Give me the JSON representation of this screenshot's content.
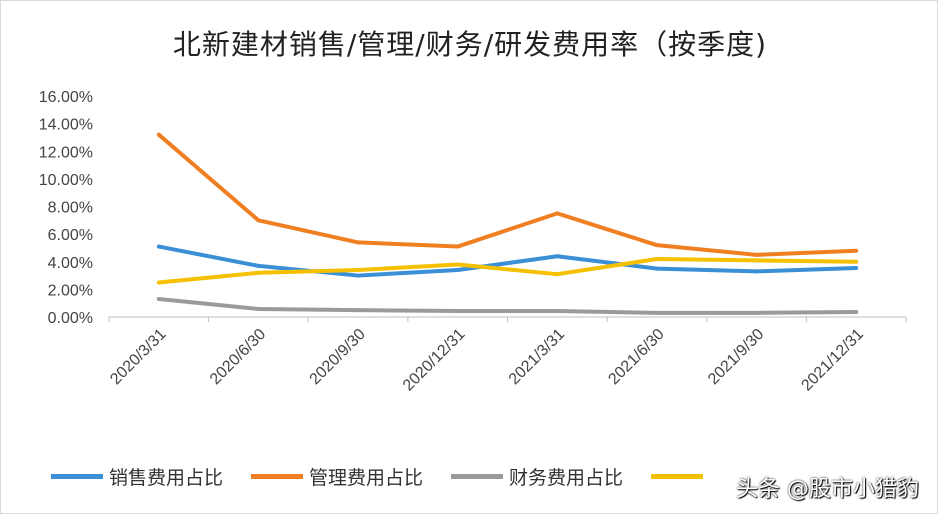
{
  "chart_data": {
    "type": "line",
    "title": "北新建材销售/管理/财务/研发费用率（按季度)",
    "categories": [
      "2020/3/31",
      "2020/6/30",
      "2020/9/30",
      "2020/12/31",
      "2021/3/31",
      "2021/6/30",
      "2021/9/30",
      "2021/12/31"
    ],
    "yticks": [
      "0.00%",
      "2.00%",
      "4.00%",
      "6.00%",
      "8.00%",
      "10.00%",
      "12.00%",
      "14.00%",
      "16.00%"
    ],
    "ylim": [
      0,
      16
    ],
    "yunit": "%",
    "grid": false,
    "legend_position": "bottom",
    "series": [
      {
        "name": "销售费用占比",
        "color": "#3b8fd6",
        "values": [
          5.1,
          3.7,
          3.0,
          3.4,
          4.4,
          3.5,
          3.3,
          3.55
        ]
      },
      {
        "name": "管理费用占比",
        "color": "#f07f22",
        "values": [
          13.2,
          7.0,
          5.4,
          5.1,
          7.5,
          5.2,
          4.5,
          4.8
        ]
      },
      {
        "name": "财务费用占比",
        "color": "#9a9a9a",
        "values": [
          1.3,
          0.58,
          0.5,
          0.43,
          0.43,
          0.3,
          0.3,
          0.36
        ]
      },
      {
        "color": "#f5c000",
        "values": [
          2.5,
          3.2,
          3.4,
          3.8,
          3.1,
          4.2,
          4.1,
          4.0
        ]
      }
    ]
  },
  "watermark": "头条 @股市小猎豹"
}
